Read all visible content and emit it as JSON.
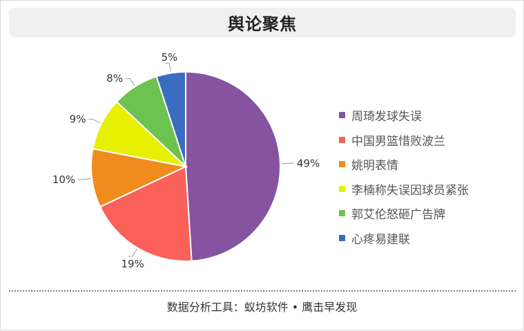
{
  "title": "舆论聚焦",
  "footer": "数据分析工具：蚁坊软件 • 鹰击早发现",
  "chart_data": {
    "type": "pie",
    "title": "舆论聚焦",
    "legend_position": "right",
    "slices": [
      {
        "label": "周琦发球失误",
        "value": 49,
        "display": "49%",
        "color": "#8553a0"
      },
      {
        "label": "中国男篮惜败波兰",
        "value": 19,
        "display": "19%",
        "color": "#fb6159"
      },
      {
        "label": "姚明表情",
        "value": 10,
        "display": "10%",
        "color": "#f08c1e"
      },
      {
        "label": "李楠称失误因球员紧张",
        "value": 9,
        "display": "9%",
        "color": "#e7f000"
      },
      {
        "label": "郭艾伦怒砸广告牌",
        "value": 8,
        "display": "8%",
        "color": "#6cc34f"
      },
      {
        "label": "心疼易建联",
        "value": 5,
        "display": "5%",
        "color": "#3a6cc0"
      }
    ]
  }
}
